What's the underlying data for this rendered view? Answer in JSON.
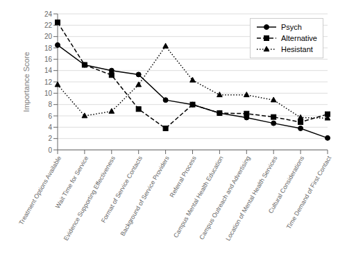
{
  "chart_data": {
    "type": "line",
    "categories": [
      "Treatment Options Available",
      "Wait Time for Service",
      "Evidence Supporting Effectiveness",
      "Format of Service Contacts",
      "Background of Service Providers",
      "Referral Process",
      "Campus Mental Health Education",
      "Campus Outreach and Advertising",
      "Location of Mental Health Services",
      "Cultural Considerations",
      "Time Demand of First Contact"
    ],
    "series": [
      {
        "name": "Psych",
        "color": "#000000",
        "marker": "circle",
        "line_style": "solid",
        "values": [
          18.5,
          15.0,
          14.0,
          13.3,
          8.8,
          8.0,
          6.5,
          5.7,
          4.7,
          3.8,
          2.1
        ]
      },
      {
        "name": "Alternative",
        "color": "#000000",
        "marker": "square",
        "line_style": "dashed",
        "values": [
          22.5,
          15.0,
          13.2,
          7.2,
          3.8,
          8.0,
          6.5,
          6.4,
          5.8,
          4.9,
          6.3
        ]
      },
      {
        "name": "Hesistant",
        "color": "#000000",
        "marker": "triangle",
        "line_style": "dotted",
        "values": [
          11.5,
          6.0,
          6.8,
          11.5,
          18.3,
          12.3,
          9.7,
          9.7,
          8.8,
          5.7,
          5.6
        ]
      }
    ],
    "ylabel": "Importance Score",
    "ylim": [
      0,
      24
    ],
    "yticks": [
      0,
      2,
      4,
      6,
      8,
      10,
      12,
      14,
      16,
      18,
      20,
      22,
      24
    ],
    "grid": true,
    "legend": "upper right"
  }
}
